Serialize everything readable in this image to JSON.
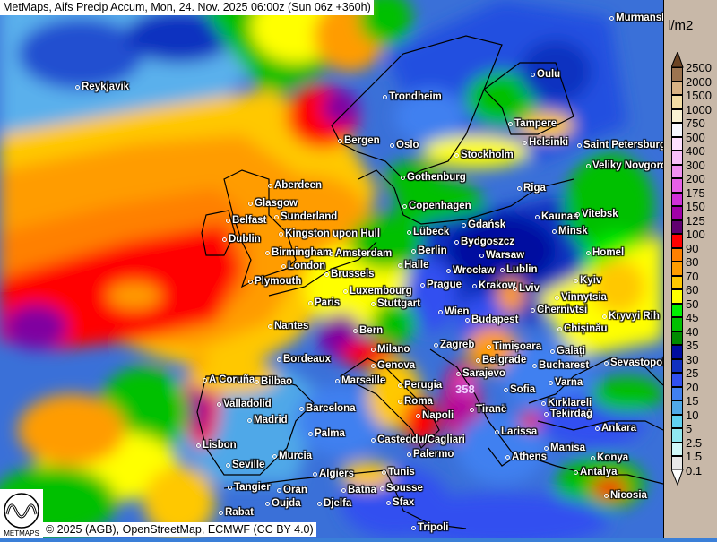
{
  "title": "MetMaps, Aifs Precip Accum, Mon, 24. Nov. 2025 06:00z (Sun 06z +360h)",
  "footer": "© 2025 (AGB), OpenStreetMap, ECMWF (CC BY 4.0)",
  "logo": "METMAPS",
  "max_value_label": "358",
  "legend": {
    "unit": "l/m2",
    "labels": [
      "2500",
      "2000",
      "1500",
      "1000",
      "750",
      "500",
      "400",
      "300",
      "200",
      "175",
      "150",
      "125",
      "100",
      "90",
      "80",
      "70",
      "60",
      "50",
      "45",
      "40",
      "35",
      "30",
      "25",
      "20",
      "15",
      "10",
      "5",
      "2.5",
      "1.5",
      "0.1"
    ],
    "colors": [
      "#9c7450",
      "#d8b284",
      "#f2dca4",
      "#faf2d4",
      "#f8f8ff",
      "#ffe0ff",
      "#f8c0f8",
      "#f090f0",
      "#e860e8",
      "#d030d8",
      "#a000a8",
      "#600070",
      "#ff0000",
      "#ff8000",
      "#ff9c00",
      "#ffc800",
      "#ffff00",
      "#00f000",
      "#00c000",
      "#008a00",
      "#000ca0",
      "#1030c0",
      "#3050f0",
      "#4080f0",
      "#50a8e8",
      "#60d0f0",
      "#90e8f0",
      "#d0f8f8",
      "#e8e8e8"
    ],
    "top_arrow_color": "#6c4424",
    "bottom_arrow_color": "#ffffff"
  },
  "cities": [
    "Murmansk",
    "Reykjavik",
    "Oulu",
    "Trondheim",
    "Tampere",
    "Bergen",
    "Oslo",
    "Helsinki",
    "Saint Petersburg",
    "Stockholm",
    "Veliky Novgorod",
    "Gothenburg",
    "Aberdeen",
    "Riga",
    "Glasgow",
    "Copenhagen",
    "Kaunas",
    "Vitebsk",
    "Belfast",
    "Sunderland",
    "Gdańsk",
    "Minsk",
    "Dublin",
    "Kingston upon Hull",
    "Lübeck",
    "Bydgoszcz",
    "Homel",
    "Birmingham",
    "Amsterdam",
    "Berlin",
    "Warsaw",
    "London",
    "Halle",
    "Wrocław",
    "Lublin",
    "Brussels",
    "Plymouth",
    "Prague",
    "Krakow",
    "Lviv",
    "Kyiv",
    "Luxembourg",
    "Vinnytsia",
    "Stuttgart",
    "Paris",
    "Wien",
    "Chernivtsi",
    "Budapest",
    "Kryvyi Rih",
    "Chișinău",
    "Nantes",
    "Bern",
    "Zagreb",
    "Timișoara",
    "Milano",
    "Galați",
    "Bordeaux",
    "Genova",
    "Belgrade",
    "Bucharest",
    "Sevastopol",
    "Sarajevo",
    "Perugia",
    "Marseille",
    "A Coruña",
    "Bilbao",
    "Varna",
    "Sofia",
    "Roma",
    "Kırklareli",
    "Tiranë",
    "Valladolid",
    "Barcelona",
    "Napoli",
    "Tekirdağ",
    "Madrid",
    "Larissa",
    "Ankara",
    "Palma",
    "Casteddu/Cagliari",
    "Lisbon",
    "Manisa",
    "Konya",
    "Murcia",
    "Palermo",
    "Athens",
    "Seville",
    "Algiers",
    "Tunis",
    "Antalya",
    "Tangier",
    "Oran",
    "Batna",
    "Sousse",
    "Nicosia",
    "Oujda",
    "Djelfa",
    "Sfax",
    "Rabat",
    "Tripoli"
  ]
}
